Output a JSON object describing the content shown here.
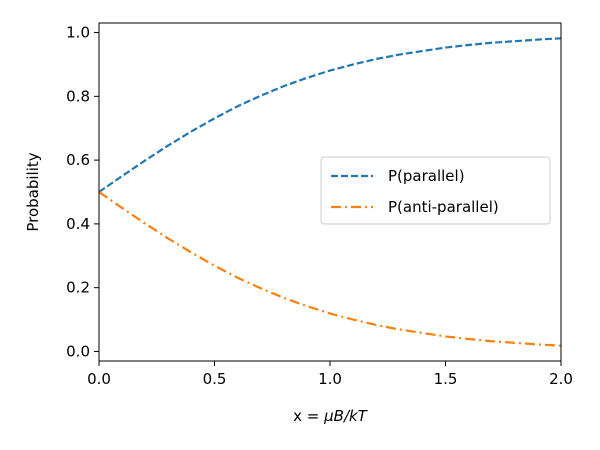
{
  "chart_data": {
    "type": "line",
    "xlabel": "x = μB/kT",
    "xlabel_parts": {
      "prefix": "x = ",
      "math": "μB/kT"
    },
    "ylabel": "Probability",
    "xlim": [
      0.0,
      2.0
    ],
    "ylim": [
      -0.03,
      1.03
    ],
    "xticks": [
      0.0,
      0.5,
      1.0,
      1.5,
      2.0
    ],
    "xtick_labels": [
      "0.0",
      "0.5",
      "1.0",
      "1.5",
      "2.0"
    ],
    "yticks": [
      0.0,
      0.2,
      0.4,
      0.6,
      0.8,
      1.0
    ],
    "ytick_labels": [
      "0.0",
      "0.2",
      "0.4",
      "0.6",
      "0.8",
      "1.0"
    ],
    "grid": false,
    "legend_position": "center-right",
    "x": [
      0.0,
      0.1,
      0.2,
      0.3,
      0.4,
      0.5,
      0.6,
      0.7,
      0.8,
      0.9,
      1.0,
      1.1,
      1.2,
      1.3,
      1.4,
      1.5,
      1.6,
      1.7,
      1.8,
      1.9,
      2.0
    ],
    "series": [
      {
        "name": "P(parallel)",
        "color": "#1f77b4",
        "style": "dashed",
        "values": [
          0.5,
          0.55,
          0.599,
          0.646,
          0.69,
          0.731,
          0.769,
          0.802,
          0.832,
          0.858,
          0.881,
          0.9,
          0.917,
          0.931,
          0.942,
          0.953,
          0.961,
          0.968,
          0.973,
          0.978,
          0.982
        ]
      },
      {
        "name": "P(anti-parallel)",
        "color": "#ff7f0e",
        "style": "dashdot",
        "values": [
          0.5,
          0.45,
          0.401,
          0.354,
          0.31,
          0.269,
          0.231,
          0.198,
          0.168,
          0.142,
          0.119,
          0.1,
          0.083,
          0.069,
          0.058,
          0.047,
          0.039,
          0.032,
          0.027,
          0.022,
          0.018
        ]
      }
    ]
  }
}
